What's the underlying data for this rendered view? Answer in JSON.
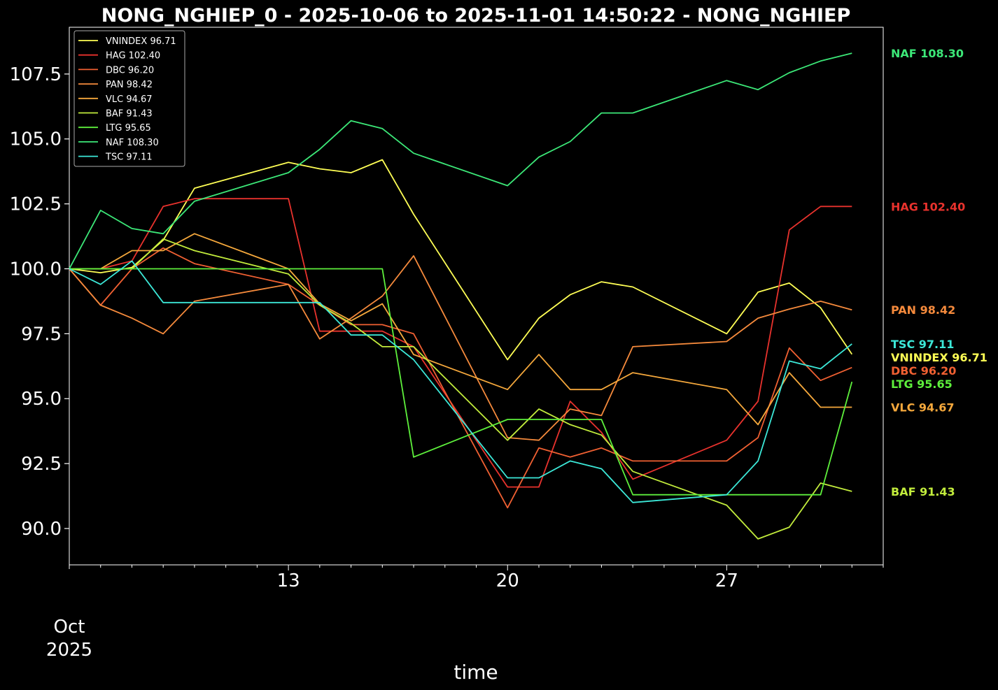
{
  "chart_data": {
    "type": "line",
    "title": "NONG_NGHIEP_0 - 2025-10-06 to 2025-11-01 14:50:22 - NONG_NGHIEP",
    "xlabel": "time",
    "ylabel": "",
    "x": [
      "2025-10-06",
      "2025-10-07",
      "2025-10-08",
      "2025-10-09",
      "2025-10-10",
      "2025-10-13",
      "2025-10-14",
      "2025-10-15",
      "2025-10-16",
      "2025-10-17",
      "2025-10-20",
      "2025-10-21",
      "2025-10-22",
      "2025-10-23",
      "2025-10-24",
      "2025-10-27",
      "2025-10-28",
      "2025-10-29",
      "2025-10-30",
      "2025-10-31"
    ],
    "x_ticks": [
      "13",
      "20",
      "27"
    ],
    "x_month_label": [
      "Oct",
      "2025"
    ],
    "y_ticks": [
      "90.0",
      "92.5",
      "95.0",
      "97.5",
      "100.0",
      "102.5",
      "105.0",
      "107.5"
    ],
    "ylim": [
      88.6,
      109.3
    ],
    "grid": false,
    "legend_position": "top-left",
    "series": [
      {
        "name": "VNINDEX",
        "label": "VNINDEX 96.71",
        "color": "#ffff55",
        "values": [
          100.0,
          99.85,
          100.05,
          101.1,
          103.1,
          104.1,
          103.85,
          103.7,
          104.2,
          102.1,
          96.5,
          98.1,
          99.0,
          99.5,
          99.3,
          97.5,
          99.1,
          99.45,
          98.5,
          96.71
        ]
      },
      {
        "name": "HAG",
        "label": "HAG 102.40",
        "color": "#e8322d",
        "values": [
          100.0,
          100.0,
          100.3,
          102.4,
          102.7,
          102.7,
          97.6,
          97.6,
          97.6,
          97.0,
          91.6,
          91.6,
          94.9,
          93.7,
          91.9,
          93.4,
          94.9,
          101.5,
          102.4,
          102.4
        ]
      },
      {
        "name": "DBC",
        "label": "DBC 96.20",
        "color": "#f06032",
        "values": [
          100.0,
          98.6,
          100.0,
          100.8,
          100.2,
          99.4,
          98.6,
          97.85,
          97.85,
          97.5,
          90.8,
          93.1,
          92.75,
          93.1,
          92.6,
          92.6,
          93.5,
          96.95,
          95.7,
          96.2
        ]
      },
      {
        "name": "PAN",
        "label": "PAN 98.42",
        "color": "#f58a3c",
        "values": [
          100.0,
          98.6,
          98.1,
          97.5,
          98.75,
          99.4,
          97.3,
          98.1,
          98.95,
          100.5,
          93.5,
          93.4,
          94.6,
          94.35,
          97.0,
          97.2,
          98.1,
          98.45,
          98.75,
          98.42
        ]
      },
      {
        "name": "VLC",
        "label": "VLC 94.67",
        "color": "#f5a83c",
        "values": [
          100.0,
          100.0,
          100.7,
          100.7,
          101.35,
          100.0,
          98.65,
          98.0,
          98.65,
          96.7,
          95.35,
          96.7,
          95.35,
          95.35,
          96.0,
          95.35,
          94.0,
          96.0,
          94.67,
          94.67
        ]
      },
      {
        "name": "BAF",
        "label": "BAF 91.43",
        "color": "#c2ec3c",
        "values": [
          100.0,
          100.0,
          100.0,
          101.15,
          100.7,
          99.8,
          98.6,
          97.9,
          97.0,
          97.0,
          93.4,
          94.6,
          94.0,
          93.6,
          92.2,
          90.9,
          89.6,
          90.05,
          91.75,
          91.43
        ]
      },
      {
        "name": "LTG",
        "label": "LTG 95.65",
        "color": "#5ef03c",
        "values": [
          100.0,
          100.0,
          100.0,
          100.0,
          100.0,
          100.0,
          100.0,
          100.0,
          100.0,
          92.75,
          94.2,
          94.2,
          94.2,
          94.2,
          91.3,
          91.3,
          91.3,
          91.3,
          91.3,
          95.65
        ]
      },
      {
        "name": "NAF",
        "label": "NAF 108.30",
        "color": "#3ce878",
        "values": [
          100.0,
          102.25,
          101.55,
          101.35,
          102.6,
          103.7,
          104.6,
          105.7,
          105.4,
          104.45,
          103.2,
          104.3,
          104.9,
          106.0,
          106.0,
          107.25,
          106.9,
          107.55,
          108.0,
          108.3
        ]
      },
      {
        "name": "TSC",
        "label": "TSC 97.11",
        "color": "#3ce8d8",
        "values": [
          100.0,
          99.4,
          100.3,
          98.7,
          98.7,
          98.7,
          98.7,
          97.45,
          97.45,
          96.5,
          91.95,
          91.95,
          92.6,
          92.3,
          91.0,
          91.3,
          92.6,
          96.45,
          96.15,
          97.11
        ]
      }
    ]
  }
}
